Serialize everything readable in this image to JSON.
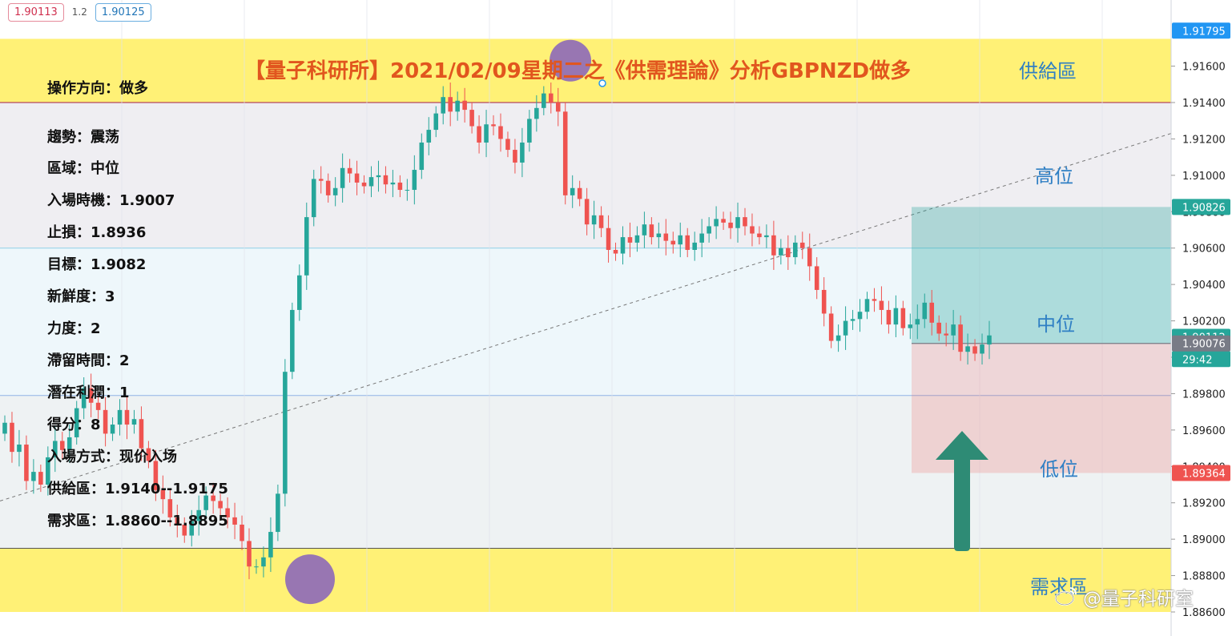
{
  "top_bar": {
    "sell_price": "1.90113",
    "spread": "1.2",
    "buy_price": "1.90125"
  },
  "title": "【量子科研所】2021/02/09星期二之《供需理論》分析GBPNZD做多",
  "info_panel": {
    "lines": [
      "操作方向：做多",
      "趨勢：震荡",
      "區域：中位",
      "入場時機：1.9007",
      "止損：1.8936",
      "目標：1.9082",
      "新鮮度：3",
      "力度：2",
      "滯留時間：2",
      "潛在利潤：1",
      "得分：8",
      "入場方式：现价入场",
      "供給區：1.9140--1.9175",
      "需求區：1.8860--1.8895"
    ]
  },
  "zone_labels": {
    "supply": "供給區",
    "high": "高位",
    "mid": "中位",
    "low": "低位",
    "demand": "需求區"
  },
  "watermark": "@量子科研室",
  "colors": {
    "up": "#26a69a",
    "down": "#ef5350",
    "supply_band": "#fff176",
    "demand_band": "#fff176",
    "title": "#e1561e",
    "zone_label": "#2f7fc4",
    "long_target": "#26a69a",
    "long_stop": "#ef5350",
    "arrow": "#2e8b75",
    "highlight_circle": "#7e57c2"
  },
  "chart_data": {
    "type": "candlestick",
    "symbol": "GBPNZD",
    "ylim": [
      1.8856,
      1.918
    ],
    "y_ticks": [
      1.886,
      1.888,
      1.89,
      1.892,
      1.894,
      1.896,
      1.898,
      1.9,
      1.902,
      1.904,
      1.906,
      1.908,
      1.91,
      1.912,
      1.914,
      1.916
    ],
    "y_tick_labels": [
      "1.88600",
      "1.88800",
      "1.89000",
      "1.89200",
      "1.89400",
      "1.89600",
      "1.89800",
      "1.90000",
      "1.90200",
      "1.90400",
      "1.90600",
      "1.90800",
      "1.91000",
      "1.91200",
      "1.91400",
      "1.91600"
    ],
    "price_tags": [
      {
        "value": 1.91795,
        "label": "1.91795",
        "color": "#2196f3"
      },
      {
        "value": 1.90826,
        "label": "1.90826",
        "color": "#26a69a"
      },
      {
        "value": 1.90112,
        "label": "1.90112",
        "color": "#26a69a"
      },
      {
        "value": 1.8999,
        "label": "29:42",
        "color": "#26a69a"
      },
      {
        "value": 1.90076,
        "label": "1.90076",
        "color": "#787b86"
      },
      {
        "value": 1.89364,
        "label": "1.89364",
        "color": "#ef5350"
      }
    ],
    "zones": {
      "supply": [
        1.914,
        1.9175
      ],
      "demand": [
        1.886,
        1.8895
      ],
      "high_region": [
        1.906,
        1.914
      ],
      "mid_region": [
        1.8979,
        1.906
      ],
      "low_region": [
        1.8895,
        1.8979
      ]
    },
    "trendline": {
      "start": 1.8921,
      "end": 1.9123
    },
    "position": {
      "entry": 1.90076,
      "target": 1.90826,
      "stop": 1.89364
    },
    "highlights": [
      {
        "price": 1.9163
      },
      {
        "price": 1.8878
      }
    ],
    "closes": [
      1.8964,
      1.8948,
      1.8952,
      1.8932,
      1.8937,
      1.893,
      1.8945,
      1.8954,
      1.8949,
      1.8956,
      1.8972,
      1.8983,
      1.8975,
      1.8971,
      1.8958,
      1.8963,
      1.8971,
      1.8963,
      1.8966,
      1.895,
      1.8943,
      1.8927,
      1.8922,
      1.8912,
      1.8908,
      1.8902,
      1.891,
      1.8916,
      1.8924,
      1.8921,
      1.8917,
      1.8912,
      1.8908,
      1.8899,
      1.8885,
      1.8885,
      1.889,
      1.8904,
      1.8925,
      1.8992,
      1.9026,
      1.9045,
      1.9077,
      1.9098,
      1.9097,
      1.9089,
      1.9093,
      1.9104,
      1.9101,
      1.9096,
      1.9094,
      1.9099,
      1.91,
      1.9095,
      1.9096,
      1.9092,
      1.9092,
      1.9103,
      1.9118,
      1.9125,
      1.9134,
      1.9143,
      1.9135,
      1.9141,
      1.9136,
      1.9127,
      1.9118,
      1.9128,
      1.9127,
      1.912,
      1.9114,
      1.9107,
      1.9118,
      1.9131,
      1.9137,
      1.9145,
      1.914,
      1.9135,
      1.9089,
      1.9093,
      1.9087,
      1.9073,
      1.9078,
      1.9071,
      1.9059,
      1.9057,
      1.9066,
      1.9063,
      1.9067,
      1.9073,
      1.9066,
      1.9068,
      1.9064,
      1.9062,
      1.9067,
      1.9059,
      1.9063,
      1.9068,
      1.9072,
      1.9076,
      1.9074,
      1.9071,
      1.9077,
      1.9072,
      1.9068,
      1.9066,
      1.9067,
      1.9056,
      1.906,
      1.9055,
      1.9063,
      1.906,
      1.905,
      1.9037,
      1.9024,
      1.9009,
      1.9012,
      1.902,
      1.9021,
      1.9025,
      1.9032,
      1.9031,
      1.9026,
      1.9018,
      1.9027,
      1.9016,
      1.9018,
      1.9021,
      1.903,
      1.9019,
      1.9013,
      1.9012,
      1.9018,
      1.9003,
      1.9006,
      1.9002,
      1.9007,
      1.9012
    ]
  }
}
